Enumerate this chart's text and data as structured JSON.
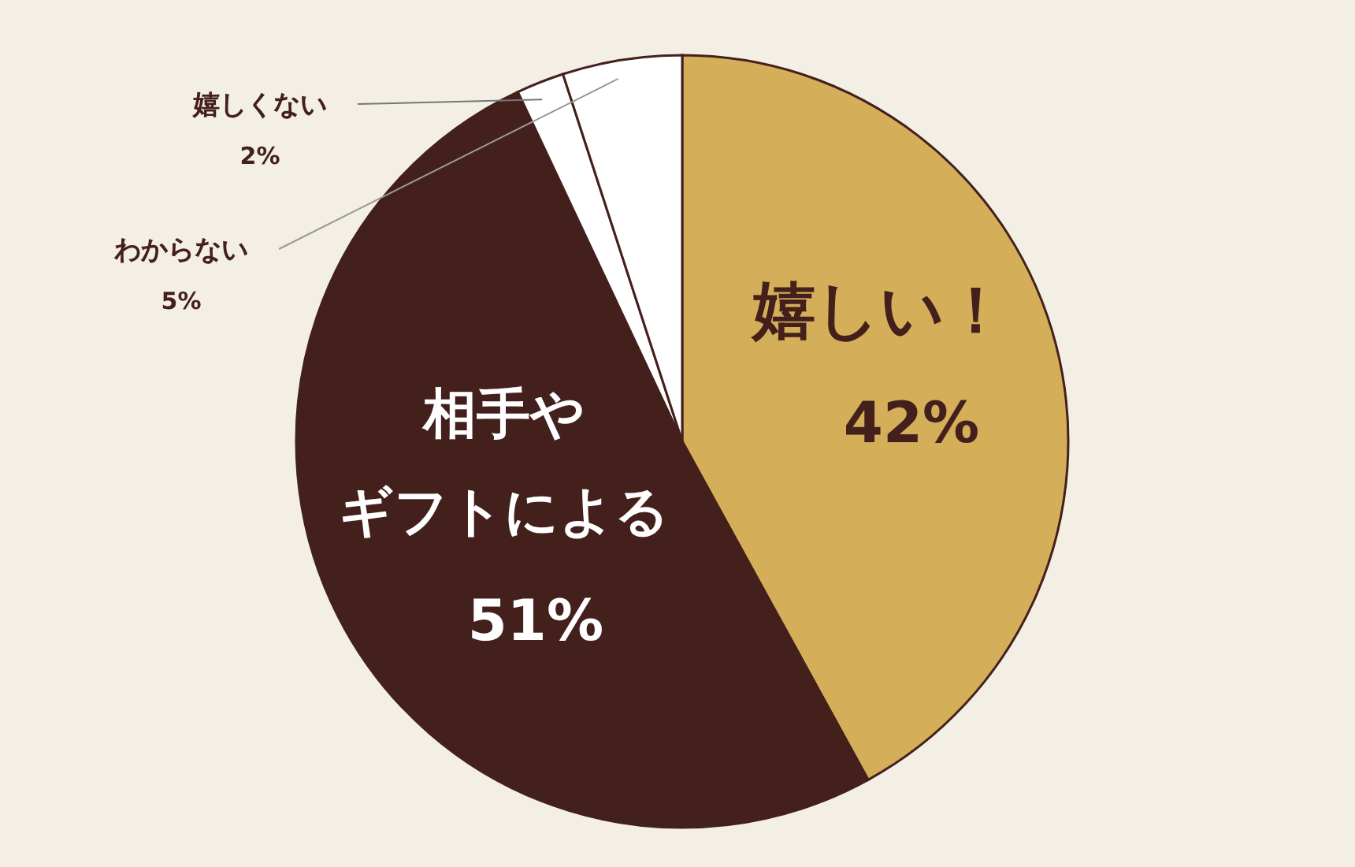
{
  "chart_data": {
    "type": "pie",
    "categories": [
      "嬉しい！",
      "相手やギフトによる",
      "嬉しくない",
      "わからない"
    ],
    "values": [
      42,
      51,
      2,
      5
    ],
    "colors": [
      "#d4ae58",
      "#44201d",
      "#ffffff",
      "#ffffff"
    ],
    "value_labels": [
      "42%",
      "51%",
      "2%",
      "5%"
    ]
  }
}
